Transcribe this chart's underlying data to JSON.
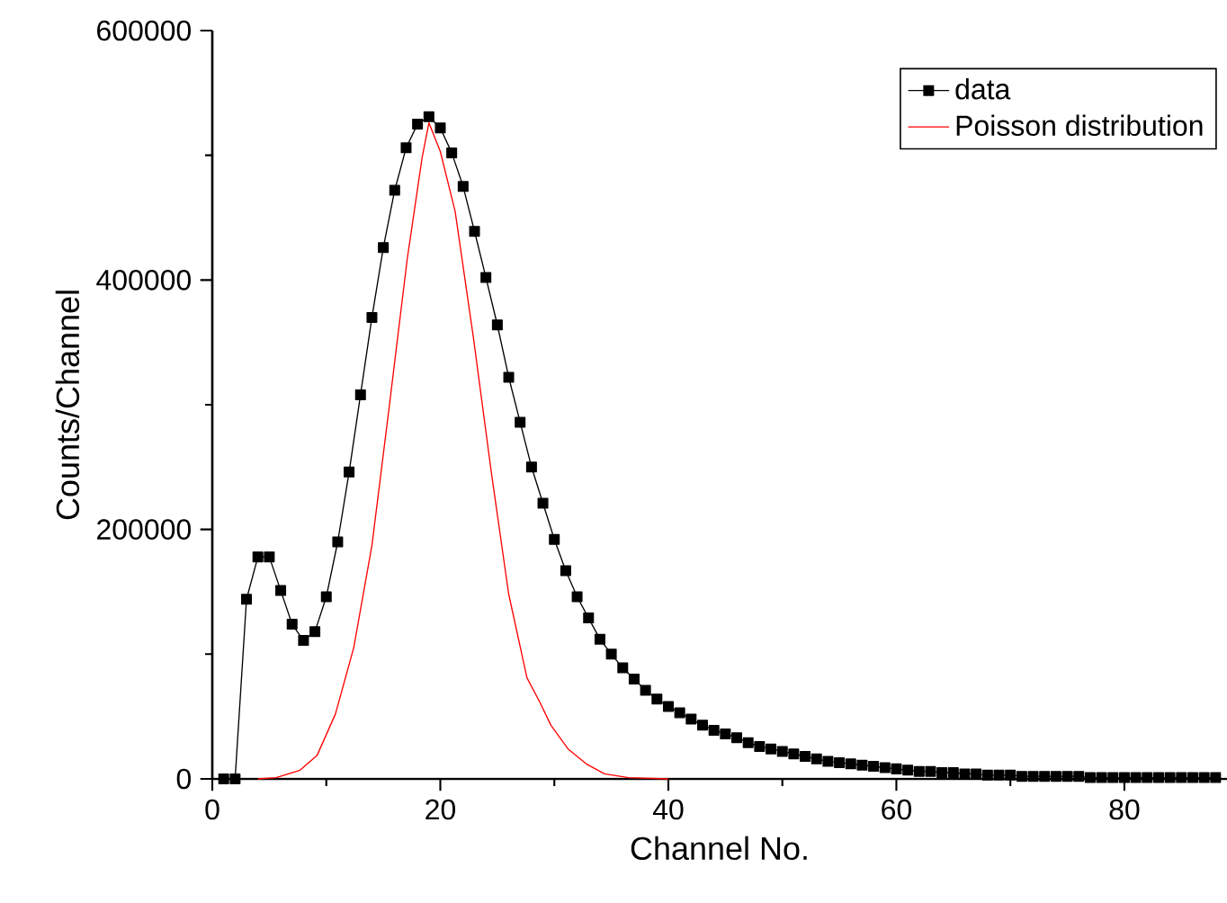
{
  "chart_data": {
    "type": "line",
    "xlabel": "Channel No.",
    "ylabel": "Counts/Channel",
    "xlim": [
      0,
      89
    ],
    "ylim": [
      0,
      600000
    ],
    "xticks": [
      0,
      {
        "value": 10,
        "label": null
      },
      20,
      {
        "value": 30,
        "label": null
      },
      40,
      {
        "value": 50,
        "label": null
      },
      60,
      {
        "value": 70,
        "label": null
      },
      80
    ],
    "yticks": [
      0,
      {
        "value": 100000,
        "label": null
      },
      200000,
      {
        "value": 300000,
        "label": null
      },
      400000,
      {
        "value": 500000,
        "label": null
      },
      600000
    ],
    "legend": "top right",
    "grid": false,
    "series": [
      {
        "name": "data",
        "color": "#000000",
        "marker": "square",
        "x": [
          1,
          2,
          3,
          4,
          5,
          6,
          7,
          8,
          9,
          10,
          11,
          12,
          13,
          14,
          15,
          16,
          17,
          18,
          19,
          20,
          21,
          22,
          23,
          24,
          25,
          26,
          27,
          28,
          29,
          30,
          31,
          32,
          33,
          34,
          35,
          36,
          37,
          38,
          39,
          40,
          41,
          42,
          43,
          44,
          45,
          46,
          47,
          48,
          49,
          50,
          51,
          52,
          53,
          54,
          55,
          56,
          57,
          58,
          59,
          60,
          61,
          62,
          63,
          64,
          65,
          66,
          67,
          68,
          69,
          70,
          71,
          72,
          73,
          74,
          75,
          76,
          77,
          78,
          79,
          80,
          81,
          82,
          83,
          84,
          85,
          86,
          87,
          88
        ],
        "values": [
          0,
          0,
          144000,
          178000,
          178000,
          151000,
          124000,
          111000,
          118000,
          146000,
          190000,
          246000,
          308000,
          370000,
          426000,
          472000,
          506000,
          525000,
          531000,
          522000,
          502000,
          475000,
          439000,
          402000,
          364000,
          322000,
          286000,
          250000,
          221000,
          192000,
          167000,
          146000,
          129000,
          112000,
          100000,
          89000,
          80000,
          71000,
          64000,
          58000,
          53000,
          48000,
          43000,
          39000,
          36000,
          33000,
          29000,
          26000,
          24000,
          22000,
          20000,
          18000,
          16000,
          14000,
          13000,
          12000,
          11000,
          10000,
          9000,
          8000,
          7000,
          6000,
          6000,
          5000,
          5000,
          4000,
          4000,
          3000,
          3000,
          3000,
          2000,
          2000,
          2000,
          2000,
          2000,
          2000,
          1000,
          1000,
          1000,
          1000,
          1000,
          1000,
          1000,
          1000,
          1000,
          1000,
          1000,
          1000
        ]
      },
      {
        "name": "Poisson distribution",
        "color": "#ff0000",
        "marker": "none",
        "x": [
          4,
          5.6,
          7.7,
          9.2,
          10.8,
          12.4,
          14,
          15.5,
          17.1,
          18.4,
          19,
          20,
          21.3,
          22.9,
          24.5,
          26,
          27.6,
          28.7,
          29.7,
          31.2,
          32.8,
          34.4,
          36.5,
          40
        ],
        "values": [
          0,
          1000,
          7000,
          19000,
          52000,
          105000,
          187000,
          297000,
          417000,
          498000,
          526000,
          503000,
          455000,
          354000,
          244000,
          148000,
          81000,
          62000,
          43000,
          24000,
          12000,
          4000,
          1000,
          0
        ]
      }
    ]
  }
}
